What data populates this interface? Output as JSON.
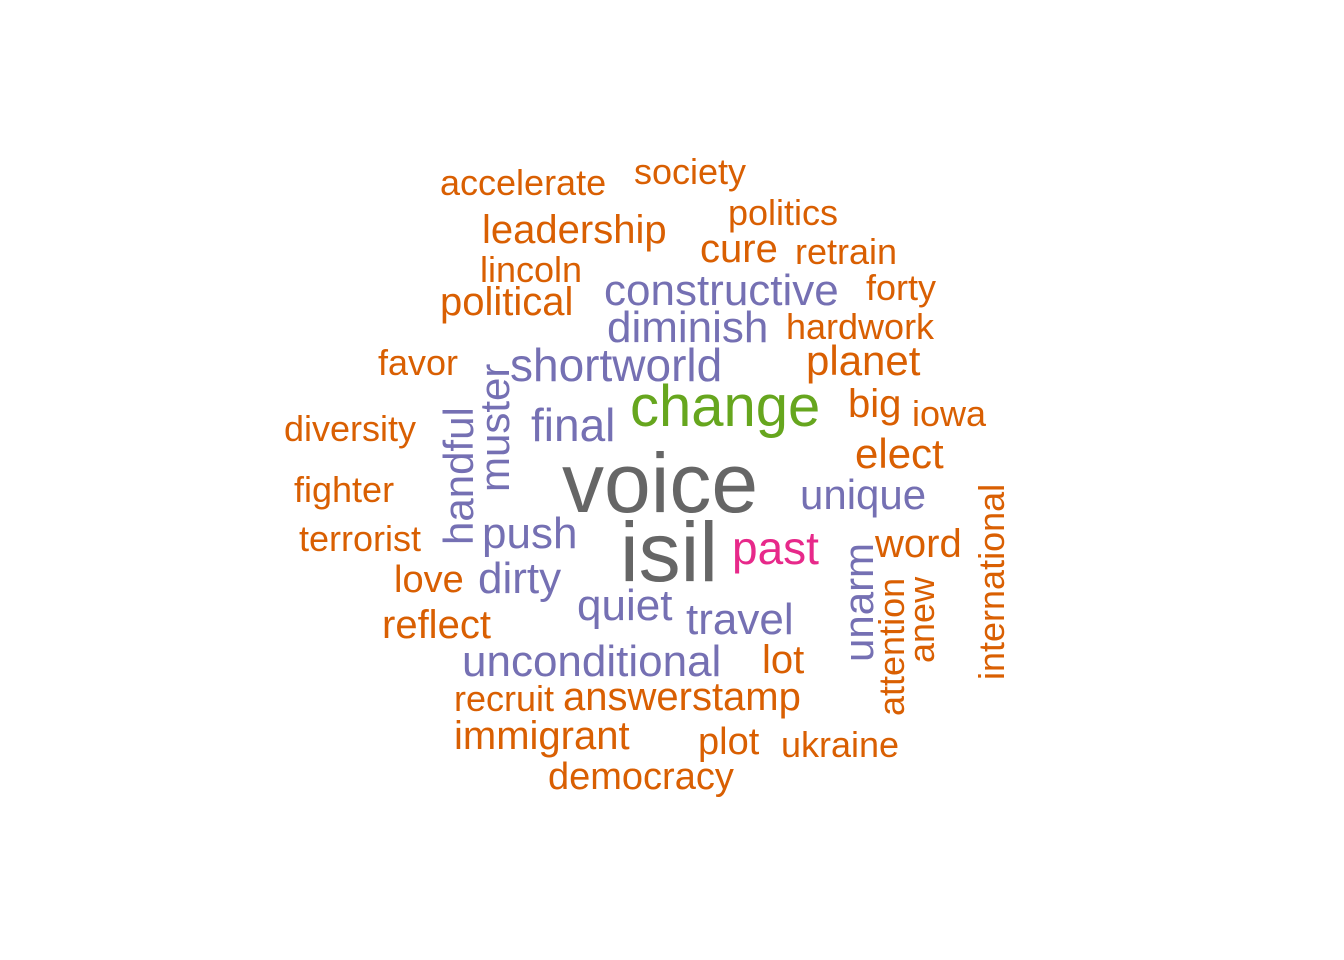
{
  "colors": {
    "gray": "#666666",
    "green": "#66a61e",
    "pink": "#e7298a",
    "purple": "#7570b3",
    "orange": "#d95f02"
  },
  "words": {
    "voice": "voice",
    "isil": "isil",
    "change": "change",
    "past": "past",
    "constructive": "constructive",
    "diminish": "diminish",
    "shortworld": "shortworld",
    "final": "final",
    "unique": "unique",
    "push": "push",
    "dirty": "dirty",
    "quiet": "quiet",
    "travel": "travel",
    "unconditional": "unconditional",
    "handful": "handful",
    "muster": "muster",
    "unarm": "unarm",
    "accelerate": "accelerate",
    "society": "society",
    "politics": "politics",
    "leadership": "leadership",
    "cure": "cure",
    "retrain": "retrain",
    "lincoln": "lincoln",
    "forty": "forty",
    "political": "political",
    "hardwork": "hardwork",
    "favor": "favor",
    "planet": "planet",
    "big": "big",
    "iowa": "iowa",
    "diversity": "diversity",
    "elect": "elect",
    "fighter": "fighter",
    "terrorist": "terrorist",
    "word": "word",
    "love": "love",
    "reflect": "reflect",
    "lot": "lot",
    "recruit": "recruit",
    "answerstamp": "answerstamp",
    "immigrant": "immigrant",
    "plot": "plot",
    "ukraine": "ukraine",
    "democracy": "democracy",
    "attention": "attention",
    "anew": "anew",
    "international": "international"
  }
}
